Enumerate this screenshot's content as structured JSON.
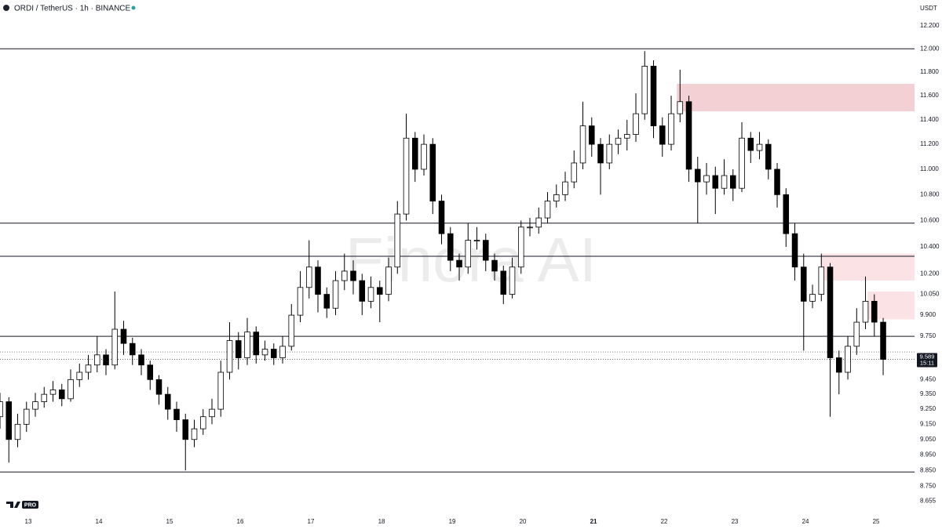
{
  "chart_data": {
    "type": "candlestick",
    "title": "ORDI / TetherUS · 1h · BINANCE",
    "currency": "USDT",
    "watermark": "Finora AI",
    "badge": "PRO",
    "log_scale": true,
    "grid": false,
    "up_color": "#ffffff",
    "down_color": "#000000",
    "xlim": [
      12.6,
      25.544
    ],
    "xticks": [
      13,
      14,
      15,
      16,
      17,
      18,
      19,
      20,
      21,
      22,
      23,
      24,
      25
    ],
    "ylim": [
      8.58,
      12.43
    ],
    "yticks": [
      {
        "value": 12.2,
        "label": "12.200"
      },
      {
        "value": 12.0,
        "label": "12.000"
      },
      {
        "value": 11.8,
        "label": "11.800"
      },
      {
        "value": 11.6,
        "label": "11.600"
      },
      {
        "value": 11.4,
        "label": "11.400"
      },
      {
        "value": 11.2,
        "label": "11.200"
      },
      {
        "value": 11.0,
        "label": "11.000"
      },
      {
        "value": 10.8,
        "label": "10.800"
      },
      {
        "value": 10.6,
        "label": "10.600"
      },
      {
        "value": 10.4,
        "label": "10.400"
      },
      {
        "value": 10.2,
        "label": "10.200"
      },
      {
        "value": 10.05,
        "label": "10.050"
      },
      {
        "value": 9.9,
        "label": "9.900"
      },
      {
        "value": 9.75,
        "label": "9.750"
      },
      {
        "value": 9.45,
        "label": "9.450"
      },
      {
        "value": 9.35,
        "label": "9.350"
      },
      {
        "value": 9.25,
        "label": "9.250"
      },
      {
        "value": 9.15,
        "label": "9.150"
      },
      {
        "value": 9.05,
        "label": "9.050"
      },
      {
        "value": 8.95,
        "label": "8.950"
      },
      {
        "value": 8.85,
        "label": "8.850"
      },
      {
        "value": 8.75,
        "label": "8.750"
      },
      8.655
    ],
    "last_price": 9.589,
    "countdown": "15:11",
    "levels": [
      12.0,
      10.58,
      10.33,
      9.75,
      8.84
    ],
    "dotted_levels": [
      9.64
    ],
    "zones": [
      {
        "x0": 22.18,
        "low": 11.47,
        "high": 11.7,
        "color": "#f2d0d3"
      },
      {
        "x0": 24.23,
        "low": 10.15,
        "high": 10.35,
        "color": "#fbe3e5"
      },
      {
        "x0": 24.88,
        "low": 9.87,
        "high": 10.07,
        "color": "#fbe3e5"
      }
    ],
    "x": [
      12.6,
      12.725,
      12.85,
      12.975,
      13.1,
      13.225,
      13.35,
      13.475,
      13.6,
      13.725,
      13.85,
      13.975,
      14.1,
      14.225,
      14.35,
      14.475,
      14.6,
      14.725,
      14.85,
      14.975,
      15.1,
      15.225,
      15.35,
      15.475,
      15.6,
      15.725,
      15.85,
      15.975,
      16.1,
      16.225,
      16.35,
      16.475,
      16.6,
      16.725,
      16.85,
      16.975,
      17.1,
      17.225,
      17.35,
      17.475,
      17.6,
      17.725,
      17.85,
      17.975,
      18.1,
      18.225,
      18.35,
      18.475,
      18.6,
      18.725,
      18.85,
      18.975,
      19.1,
      19.225,
      19.35,
      19.475,
      19.6,
      19.725,
      19.85,
      19.975,
      20.1,
      20.225,
      20.35,
      20.475,
      20.6,
      20.725,
      20.85,
      20.975,
      21.1,
      21.225,
      21.35,
      21.475,
      21.6,
      21.725,
      21.85,
      21.975,
      22.1,
      22.225,
      22.35,
      22.475,
      22.6,
      22.725,
      22.85,
      22.975,
      23.1,
      23.225,
      23.35,
      23.475,
      23.6,
      23.725,
      23.85,
      23.975,
      24.1,
      24.225,
      24.35,
      24.475,
      24.6,
      24.725,
      24.85,
      24.975,
      25.1
    ],
    "open": [
      9.2,
      9.3,
      9.05,
      9.15,
      9.25,
      9.3,
      9.35,
      9.38,
      9.32,
      9.45,
      9.5,
      9.55,
      9.62,
      9.55,
      9.8,
      9.7,
      9.62,
      9.55,
      9.45,
      9.35,
      9.25,
      9.18,
      9.05,
      9.12,
      9.2,
      9.25,
      9.5,
      9.72,
      9.6,
      9.78,
      9.62,
      9.66,
      9.6,
      9.68,
      9.9,
      10.1,
      10.25,
      10.05,
      9.95,
      10.15,
      10.22,
      10.15,
      10.0,
      10.1,
      10.05,
      10.25,
      10.65,
      11.25,
      11.0,
      11.2,
      10.75,
      10.5,
      10.3,
      10.25,
      10.45,
      10.45,
      10.3,
      10.22,
      10.05,
      10.25,
      10.55,
      10.55,
      10.62,
      10.75,
      10.8,
      10.9,
      11.05,
      11.35,
      11.2,
      11.05,
      11.2,
      11.25,
      11.28,
      11.45,
      11.85,
      11.35,
      11.2,
      11.45,
      11.55,
      11.0,
      10.9,
      10.95,
      10.85,
      10.95,
      10.85,
      11.25,
      11.15,
      11.2,
      11.0,
      10.8,
      10.5,
      10.25,
      10.0,
      10.05,
      10.25,
      9.6,
      9.5,
      9.68,
      9.85,
      10.0,
      9.85
    ],
    "high": [
      9.36,
      9.33,
      9.22,
      9.3,
      9.36,
      9.4,
      9.44,
      9.42,
      9.52,
      9.56,
      9.62,
      9.75,
      9.66,
      10.07,
      9.86,
      9.74,
      9.66,
      9.58,
      9.48,
      9.4,
      9.3,
      9.22,
      9.18,
      9.25,
      9.32,
      9.58,
      9.85,
      9.78,
      9.88,
      9.82,
      9.72,
      9.7,
      9.75,
      9.98,
      10.22,
      10.45,
      10.3,
      10.1,
      10.22,
      10.35,
      10.3,
      10.2,
      10.18,
      10.15,
      10.32,
      10.75,
      11.45,
      11.3,
      11.28,
      11.25,
      10.8,
      10.55,
      10.35,
      10.58,
      10.55,
      10.5,
      10.35,
      10.26,
      10.32,
      10.6,
      10.62,
      10.7,
      10.82,
      10.88,
      10.98,
      11.15,
      11.55,
      11.42,
      11.25,
      11.28,
      11.32,
      11.4,
      11.62,
      11.98,
      11.9,
      11.42,
      11.6,
      11.82,
      11.6,
      11.1,
      11.05,
      11.02,
      11.08,
      11.0,
      11.38,
      11.3,
      11.3,
      11.24,
      11.05,
      10.85,
      10.58,
      10.35,
      10.12,
      10.35,
      10.28,
      9.65,
      9.75,
      9.95,
      10.18,
      10.05,
      9.88
    ],
    "low": [
      9.12,
      8.9,
      9.0,
      9.1,
      9.2,
      9.26,
      9.3,
      9.27,
      9.3,
      9.4,
      9.45,
      9.5,
      9.48,
      9.52,
      9.62,
      9.55,
      9.48,
      9.38,
      9.28,
      9.18,
      9.1,
      8.85,
      9.0,
      9.08,
      9.15,
      9.2,
      9.45,
      9.52,
      9.55,
      9.56,
      9.58,
      9.55,
      9.56,
      9.65,
      9.85,
      10.02,
      9.92,
      9.88,
      9.9,
      10.08,
      10.05,
      9.9,
      9.95,
      9.85,
      10.0,
      10.2,
      10.6,
      10.9,
      10.95,
      10.65,
      10.42,
      10.22,
      10.15,
      10.2,
      10.38,
      10.22,
      10.15,
      9.98,
      10.02,
      10.2,
      10.48,
      10.5,
      10.58,
      10.7,
      10.75,
      10.85,
      11.0,
      11.1,
      10.8,
      11.0,
      11.12,
      11.15,
      11.22,
      11.4,
      11.25,
      11.1,
      11.15,
      11.38,
      10.9,
      10.58,
      10.8,
      10.65,
      10.8,
      10.75,
      10.82,
      11.05,
      11.08,
      10.92,
      10.7,
      10.4,
      10.15,
      9.65,
      9.95,
      10.0,
      9.2,
      9.35,
      9.45,
      9.62,
      9.8,
      9.75,
      9.48
    ],
    "close": [
      9.3,
      9.05,
      9.15,
      9.25,
      9.3,
      9.35,
      9.38,
      9.32,
      9.45,
      9.5,
      9.55,
      9.62,
      9.55,
      9.8,
      9.7,
      9.62,
      9.55,
      9.45,
      9.35,
      9.25,
      9.18,
      9.05,
      9.12,
      9.2,
      9.25,
      9.5,
      9.72,
      9.6,
      9.78,
      9.62,
      9.66,
      9.6,
      9.68,
      9.9,
      10.1,
      10.25,
      10.05,
      9.95,
      10.15,
      10.22,
      10.15,
      10.0,
      10.1,
      10.05,
      10.25,
      10.65,
      11.25,
      11.0,
      11.2,
      10.75,
      10.5,
      10.3,
      10.25,
      10.45,
      10.45,
      10.3,
      10.22,
      10.05,
      10.25,
      10.55,
      10.55,
      10.62,
      10.75,
      10.8,
      10.9,
      11.05,
      11.35,
      11.2,
      11.05,
      11.2,
      11.25,
      11.28,
      11.45,
      11.85,
      11.35,
      11.2,
      11.45,
      11.55,
      11.0,
      10.9,
      10.95,
      10.85,
      10.95,
      10.85,
      11.25,
      11.15,
      11.2,
      11.0,
      10.8,
      10.5,
      10.25,
      10.0,
      10.05,
      10.25,
      9.6,
      9.5,
      9.68,
      9.85,
      10.0,
      9.85,
      9.589
    ]
  }
}
